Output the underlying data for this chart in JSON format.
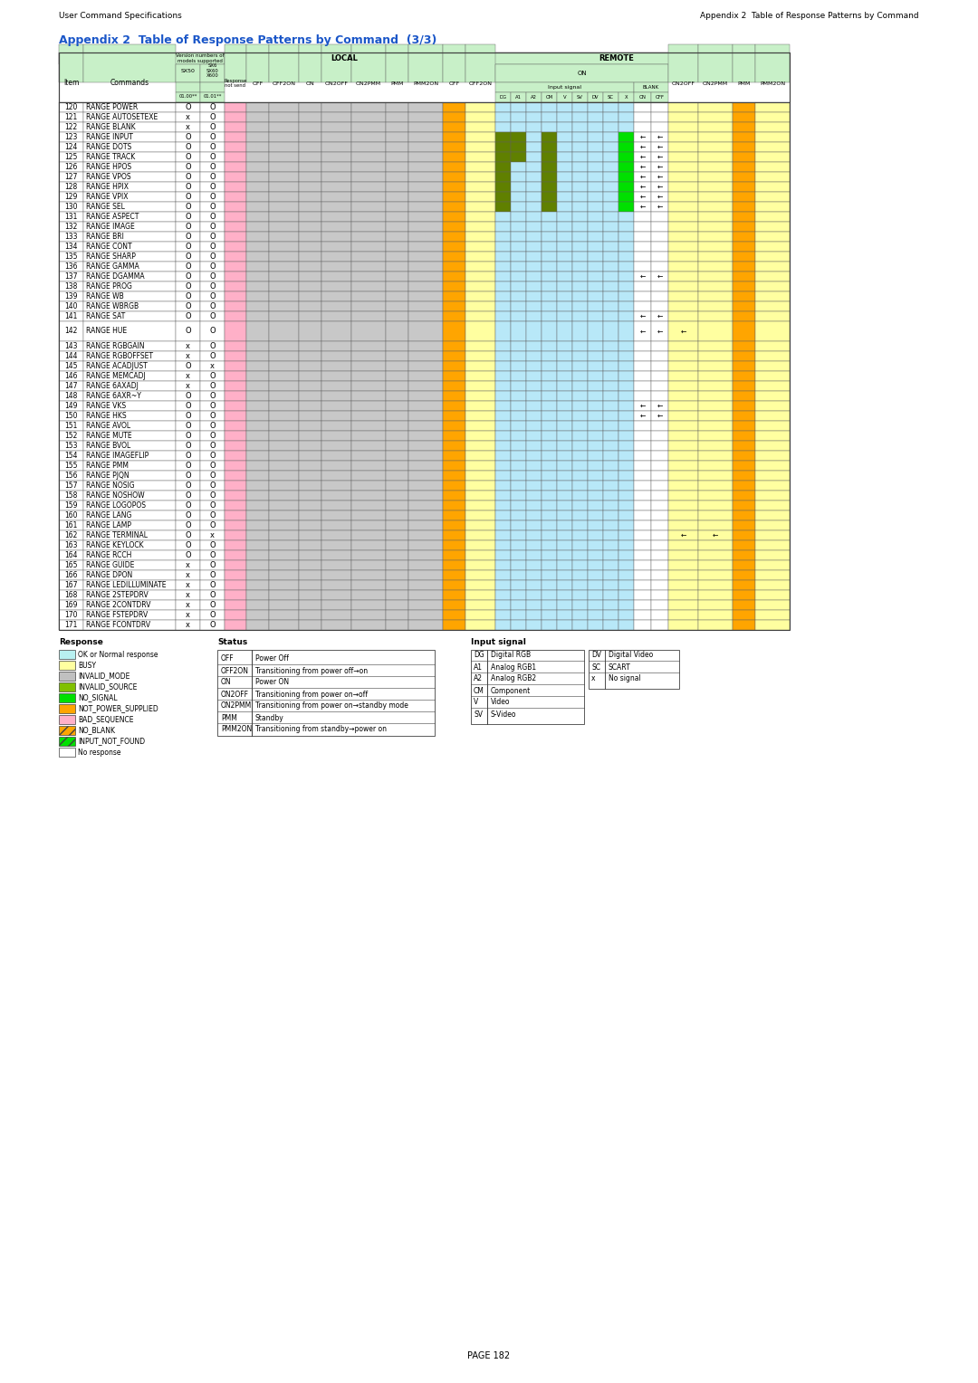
{
  "header_left": "User Command Specifications",
  "header_right": "Appendix 2  Table of Response Patterns by Command",
  "title": "Appendix 2  Table of Response Patterns by Command  (3/3)",
  "page_num": "PAGE 182",
  "rows": [
    {
      "item": 120,
      "cmd": "RANGE POWER",
      "sx50": "O",
      "sx60": "O",
      "tall": false
    },
    {
      "item": 121,
      "cmd": "RANGE AUTOSETEXE",
      "sx50": "x",
      "sx60": "O",
      "tall": false
    },
    {
      "item": 122,
      "cmd": "RANGE BLANK",
      "sx50": "x",
      "sx60": "O",
      "tall": false
    },
    {
      "item": 123,
      "cmd": "RANGE INPUT",
      "sx50": "O",
      "sx60": "O",
      "tall": false
    },
    {
      "item": 124,
      "cmd": "RANGE DOTS",
      "sx50": "O",
      "sx60": "O",
      "tall": false
    },
    {
      "item": 125,
      "cmd": "RANGE TRACK",
      "sx50": "O",
      "sx60": "O",
      "tall": false
    },
    {
      "item": 126,
      "cmd": "RANGE HPOS",
      "sx50": "O",
      "sx60": "O",
      "tall": false
    },
    {
      "item": 127,
      "cmd": "RANGE VPOS",
      "sx50": "O",
      "sx60": "O",
      "tall": false
    },
    {
      "item": 128,
      "cmd": "RANGE HPIX",
      "sx50": "O",
      "sx60": "O",
      "tall": false
    },
    {
      "item": 129,
      "cmd": "RANGE VPIX",
      "sx50": "O",
      "sx60": "O",
      "tall": false
    },
    {
      "item": 130,
      "cmd": "RANGE SEL",
      "sx50": "O",
      "sx60": "O",
      "tall": false
    },
    {
      "item": 131,
      "cmd": "RANGE ASPECT",
      "sx50": "O",
      "sx60": "O",
      "tall": false
    },
    {
      "item": 132,
      "cmd": "RANGE IMAGE",
      "sx50": "O",
      "sx60": "O",
      "tall": false
    },
    {
      "item": 133,
      "cmd": "RANGE BRI",
      "sx50": "O",
      "sx60": "O",
      "tall": false
    },
    {
      "item": 134,
      "cmd": "RANGE CONT",
      "sx50": "O",
      "sx60": "O",
      "tall": false
    },
    {
      "item": 135,
      "cmd": "RANGE SHARP",
      "sx50": "O",
      "sx60": "O",
      "tall": false
    },
    {
      "item": 136,
      "cmd": "RANGE GAMMA",
      "sx50": "O",
      "sx60": "O",
      "tall": false
    },
    {
      "item": 137,
      "cmd": "RANGE DGAMMA",
      "sx50": "O",
      "sx60": "O",
      "tall": false
    },
    {
      "item": 138,
      "cmd": "RANGE PROG",
      "sx50": "O",
      "sx60": "O",
      "tall": false
    },
    {
      "item": 139,
      "cmd": "RANGE WB",
      "sx50": "O",
      "sx60": "O",
      "tall": false
    },
    {
      "item": 140,
      "cmd": "RANGE WBRGB",
      "sx50": "O",
      "sx60": "O",
      "tall": false
    },
    {
      "item": 141,
      "cmd": "RANGE SAT",
      "sx50": "O",
      "sx60": "O",
      "tall": false
    },
    {
      "item": 142,
      "cmd": "RANGE HUE",
      "sx50": "O",
      "sx60": "O",
      "tall": true
    },
    {
      "item": 143,
      "cmd": "RANGE RGBGAIN",
      "sx50": "x",
      "sx60": "O",
      "tall": false
    },
    {
      "item": 144,
      "cmd": "RANGE RGBOFFSET",
      "sx50": "x",
      "sx60": "O",
      "tall": false
    },
    {
      "item": 145,
      "cmd": "RANGE ACADJUST",
      "sx50": "O",
      "sx60": "x",
      "tall": false
    },
    {
      "item": 146,
      "cmd": "RANGE MEMCADJ",
      "sx50": "x",
      "sx60": "O",
      "tall": false
    },
    {
      "item": 147,
      "cmd": "RANGE 6AXADJ",
      "sx50": "x",
      "sx60": "O",
      "tall": false
    },
    {
      "item": 148,
      "cmd": "RANGE 6AXR~Y",
      "sx50": "O",
      "sx60": "O",
      "tall": false
    },
    {
      "item": 149,
      "cmd": "RANGE VKS",
      "sx50": "O",
      "sx60": "O",
      "tall": false
    },
    {
      "item": 150,
      "cmd": "RANGE HKS",
      "sx50": "O",
      "sx60": "O",
      "tall": false
    },
    {
      "item": 151,
      "cmd": "RANGE AVOL",
      "sx50": "O",
      "sx60": "O",
      "tall": false
    },
    {
      "item": 152,
      "cmd": "RANGE MUTE",
      "sx50": "O",
      "sx60": "O",
      "tall": false
    },
    {
      "item": 153,
      "cmd": "RANGE BVOL",
      "sx50": "O",
      "sx60": "O",
      "tall": false
    },
    {
      "item": 154,
      "cmd": "RANGE IMAGEFLIP",
      "sx50": "O",
      "sx60": "O",
      "tall": false
    },
    {
      "item": 155,
      "cmd": "RANGE PMM",
      "sx50": "O",
      "sx60": "O",
      "tall": false
    },
    {
      "item": 156,
      "cmd": "RANGE PJQN",
      "sx50": "O",
      "sx60": "O",
      "tall": false
    },
    {
      "item": 157,
      "cmd": "RANGE NOSIG",
      "sx50": "O",
      "sx60": "O",
      "tall": false
    },
    {
      "item": 158,
      "cmd": "RANGE NOSHOW",
      "sx50": "O",
      "sx60": "O",
      "tall": false
    },
    {
      "item": 159,
      "cmd": "RANGE LOGOPOS",
      "sx50": "O",
      "sx60": "O",
      "tall": false
    },
    {
      "item": 160,
      "cmd": "RANGE LANG",
      "sx50": "O",
      "sx60": "O",
      "tall": false
    },
    {
      "item": 161,
      "cmd": "RANGE LAMP",
      "sx50": "O",
      "sx60": "O",
      "tall": false
    },
    {
      "item": 162,
      "cmd": "RANGE TERMINAL",
      "sx50": "O",
      "sx60": "x",
      "tall": false
    },
    {
      "item": 163,
      "cmd": "RANGE KEYLOCK",
      "sx50": "O",
      "sx60": "O",
      "tall": false
    },
    {
      "item": 164,
      "cmd": "RANGE RCCH",
      "sx50": "O",
      "sx60": "O",
      "tall": false
    },
    {
      "item": 165,
      "cmd": "RANGE GUIDE",
      "sx50": "x",
      "sx60": "O",
      "tall": false
    },
    {
      "item": 166,
      "cmd": "RANGE DPON",
      "sx50": "x",
      "sx60": "O",
      "tall": false
    },
    {
      "item": 167,
      "cmd": "RANGE LEDILLUMINATE",
      "sx50": "x",
      "sx60": "O",
      "tall": false
    },
    {
      "item": 168,
      "cmd": "RANGE 2STEPDRV",
      "sx50": "x",
      "sx60": "O",
      "tall": false
    },
    {
      "item": 169,
      "cmd": "RANGE 2CONTDRV",
      "sx50": "x",
      "sx60": "O",
      "tall": false
    },
    {
      "item": 170,
      "cmd": "RANGE FSTEPDRV",
      "sx50": "x",
      "sx60": "O",
      "tall": false
    },
    {
      "item": 171,
      "cmd": "RANGE FCONTDRV",
      "sx50": "x",
      "sx60": "O",
      "tall": false
    }
  ],
  "legend_response": [
    {
      "color": "#b8f0f0",
      "label": "OK or Normal response"
    },
    {
      "color": "#ffffa0",
      "label": "BUSY"
    },
    {
      "color": "#c0c0c0",
      "label": "INVALID_MODE"
    },
    {
      "color": "#80c000",
      "label": "INVALID_SOURCE"
    },
    {
      "color": "#00e000",
      "label": "NO_SIGNAL"
    },
    {
      "color": "#ffa500",
      "label": "NOT_POWER_SUPPLIED"
    },
    {
      "color": "#ffb0c8",
      "label": "BAD_SEQUENCE"
    },
    {
      "color": "hatched_orange",
      "label": "NO_BLANK"
    },
    {
      "color": "hatched_green",
      "label": "INPUT_NOT_FOUND"
    },
    {
      "color": "#ffffff",
      "label": "No response"
    }
  ],
  "legend_status": [
    {
      "abbr": "OFF",
      "desc": "Power Off"
    },
    {
      "abbr": "OFF2ON",
      "desc": "Transitioning from power off→on"
    },
    {
      "abbr": "ON",
      "desc": "Power ON"
    },
    {
      "abbr": "ON2OFF",
      "desc": "Transitioning from power on→off"
    },
    {
      "abbr": "ON2PMM",
      "desc": "Transitioning from power on→standby mode"
    },
    {
      "abbr": "PMM",
      "desc": "Standby"
    },
    {
      "abbr": "PMM2ON",
      "desc": "Transitioning from standby→power on"
    }
  ],
  "legend_signal": [
    {
      "abbr": "DG",
      "desc": "Digital RGB"
    },
    {
      "abbr": "A1",
      "desc": "Analog RGB1"
    },
    {
      "abbr": "A2",
      "desc": "Analog RGB2"
    },
    {
      "abbr": "CM",
      "desc": "Component"
    },
    {
      "abbr": "V",
      "desc": "Video"
    },
    {
      "abbr": "SV",
      "desc": "S-Video"
    },
    {
      "abbr": "DV",
      "desc": "Digital Video"
    },
    {
      "abbr": "SC",
      "desc": "SCART"
    },
    {
      "abbr": "x",
      "desc": "No signal"
    }
  ],
  "col_colors": {
    "W": "#ffffff",
    "GR": "#c8c8c8",
    "PK": "#ffb0c8",
    "OR": "#ffa500",
    "YL": "#ffffa0",
    "LB": "#b8e8f8",
    "DKG": "#608000",
    "BRG": "#00e000",
    "HBG": "#c8f0c8"
  }
}
